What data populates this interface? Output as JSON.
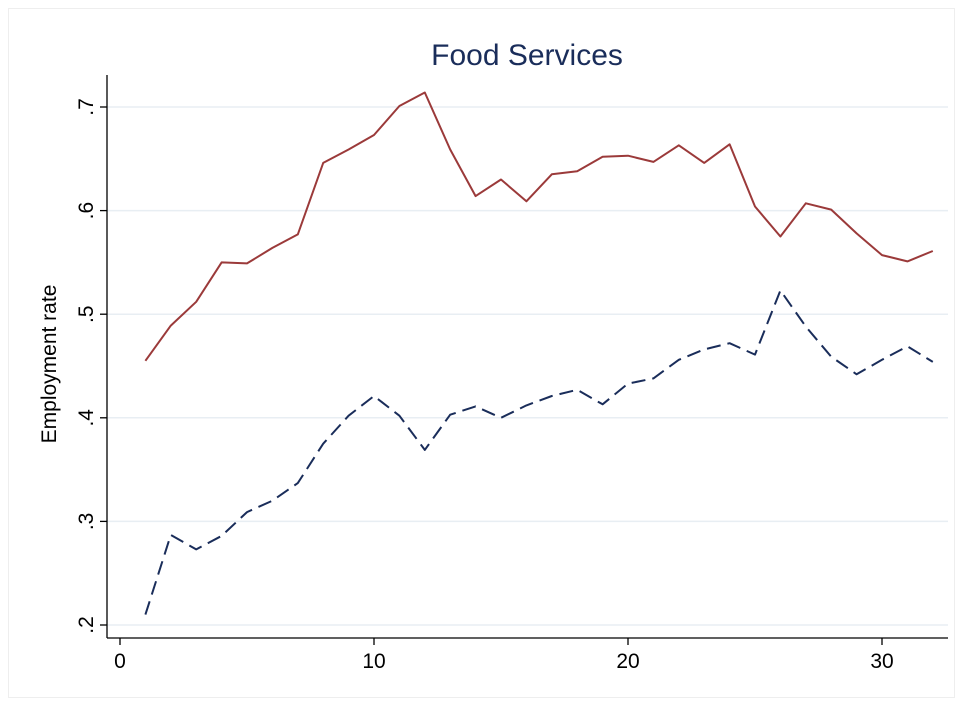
{
  "chart_data": {
    "type": "line",
    "title": "Food Services",
    "xlabel": "",
    "ylabel": "Employment rate",
    "xlim": [
      0,
      32
    ],
    "ylim": [
      0.2,
      0.7
    ],
    "x_ticks": [
      0,
      10,
      20,
      30
    ],
    "x_tick_labels": [
      "0",
      "10",
      "20",
      "30"
    ],
    "y_ticks": [
      0.2,
      0.3,
      0.4,
      0.5,
      0.6,
      0.7
    ],
    "y_tick_labels": [
      ".2",
      ".3",
      ".4",
      ".5",
      ".6",
      ".7"
    ],
    "grid": "horizontal",
    "x": [
      1,
      2,
      3,
      4,
      5,
      6,
      7,
      8,
      9,
      10,
      11,
      12,
      13,
      14,
      15,
      16,
      17,
      18,
      19,
      20,
      21,
      22,
      23,
      24,
      25,
      26,
      27,
      28,
      29,
      30,
      31,
      32
    ],
    "series": [
      {
        "style": "solid",
        "color": "#9b3a3a",
        "values": [
          0.455,
          0.489,
          0.512,
          0.55,
          0.549,
          0.564,
          0.577,
          0.646,
          0.659,
          0.673,
          0.701,
          0.714,
          0.659,
          0.614,
          0.63,
          0.609,
          0.635,
          0.638,
          0.652,
          0.653,
          0.647,
          0.663,
          0.646,
          0.664,
          0.604,
          0.575,
          0.607,
          0.601,
          0.578,
          0.557,
          0.551,
          0.561
        ]
      },
      {
        "style": "dashed",
        "color": "#1a2d5a",
        "values": [
          0.21,
          0.287,
          0.273,
          0.286,
          0.309,
          0.32,
          0.337,
          0.375,
          0.402,
          0.421,
          0.402,
          0.369,
          0.403,
          0.411,
          0.4,
          0.412,
          0.421,
          0.427,
          0.413,
          0.433,
          0.438,
          0.456,
          0.466,
          0.472,
          0.461,
          0.523,
          0.488,
          0.459,
          0.442,
          0.456,
          0.469,
          0.454
        ]
      }
    ]
  }
}
